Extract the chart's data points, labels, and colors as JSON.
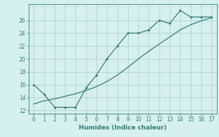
{
  "xlabel": "Humidex (Indice chaleur)",
  "bg_color": "#d6f0ee",
  "grid_color": "#b0cece",
  "line_color": "#2e7d6e",
  "x_data": [
    0,
    1,
    2,
    3,
    4,
    5,
    6,
    7,
    8,
    9,
    10,
    11,
    12,
    13,
    14,
    15,
    16,
    17
  ],
  "y_curve": [
    16,
    14.5,
    12.5,
    12.5,
    12.5,
    15.5,
    17.5,
    20,
    22,
    24,
    24,
    24.5,
    26,
    25.5,
    27.5,
    26.5,
    26.5,
    26.5
  ],
  "y_line": [
    13.0,
    13.5,
    13.8,
    14.2,
    14.6,
    15.1,
    15.7,
    16.5,
    17.5,
    18.7,
    20.0,
    21.2,
    22.3,
    23.4,
    24.5,
    25.3,
    25.9,
    26.4
  ],
  "ylim": [
    11.5,
    28.5
  ],
  "xlim": [
    -0.5,
    17.5
  ],
  "yticks": [
    12,
    14,
    16,
    18,
    20,
    22,
    24,
    26
  ],
  "xticks": [
    0,
    1,
    2,
    3,
    4,
    5,
    6,
    7,
    8,
    9,
    10,
    11,
    12,
    13,
    14,
    15,
    16,
    17
  ],
  "tick_fontsize": 5.5,
  "xlabel_fontsize": 6.5
}
